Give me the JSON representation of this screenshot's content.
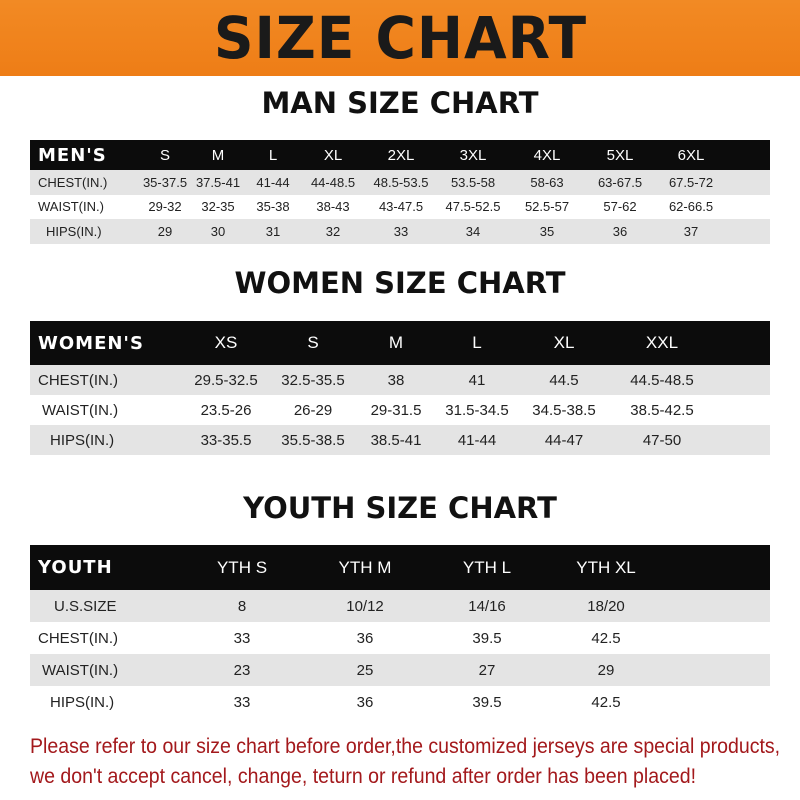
{
  "title": "SIZE CHART",
  "colors": {
    "banner": "#f08420",
    "header_row": "#0c0c0c",
    "notice": "#a3191c"
  },
  "men": {
    "title": "MAN SIZE CHART",
    "header": "MEN'S",
    "sizes": [
      "S",
      "M",
      "L",
      "XL",
      "2XL",
      "3XL",
      "4XL",
      "5XL",
      "6XL"
    ],
    "rows": [
      {
        "label": "CHEST(IN.)",
        "values": [
          "35-37.5",
          "37.5-41",
          "41-44",
          "44-48.5",
          "48.5-53.5",
          "53.5-58",
          "58-63",
          "63-67.5",
          "67.5-72"
        ]
      },
      {
        "label": "WAIST(IN.)",
        "values": [
          "29-32",
          "32-35",
          "35-38",
          "38-43",
          "43-47.5",
          "47.5-52.5",
          "52.5-57",
          "57-62",
          "62-66.5"
        ]
      },
      {
        "label": "HIPS(IN.)",
        "values": [
          "29",
          "30",
          "31",
          "32",
          "33",
          "34",
          "35",
          "36",
          "37"
        ]
      }
    ]
  },
  "women": {
    "title": "WOMEN SIZE CHART",
    "header": "WOMEN'S",
    "sizes": [
      "XS",
      "S",
      "M",
      "L",
      "XL",
      "XXL"
    ],
    "rows": [
      {
        "label": "CHEST(IN.)",
        "values": [
          "29.5-32.5",
          "32.5-35.5",
          "38",
          "41",
          "44.5",
          "44.5-48.5"
        ]
      },
      {
        "label": "WAIST(IN.)",
        "values": [
          "23.5-26",
          "26-29",
          "29-31.5",
          "31.5-34.5",
          "34.5-38.5",
          "38.5-42.5"
        ]
      },
      {
        "label": "HIPS(IN.)",
        "values": [
          "33-35.5",
          "35.5-38.5",
          "38.5-41",
          "41-44",
          "44-47",
          "47-50"
        ]
      }
    ]
  },
  "youth": {
    "title": "YOUTH SIZE CHART",
    "header": "YOUTH",
    "sizes": [
      "YTH S",
      "YTH M",
      "YTH L",
      "YTH XL"
    ],
    "rows": [
      {
        "label": "U.S.SIZE",
        "values": [
          "8",
          "10/12",
          "14/16",
          "18/20"
        ]
      },
      {
        "label": "CHEST(IN.)",
        "values": [
          "33",
          "36",
          "39.5",
          "42.5"
        ]
      },
      {
        "label": "WAIST(IN.)",
        "values": [
          "23",
          "25",
          "27",
          "29"
        ]
      },
      {
        "label": "HIPS(IN.)",
        "values": [
          "33",
          "36",
          "39.5",
          "42.5"
        ]
      }
    ]
  },
  "notice": [
    "Please refer to our size chart before order,the customized jerseys are special products,",
    "we don't accept cancel, change, teturn or refund after order has been placed!"
  ]
}
